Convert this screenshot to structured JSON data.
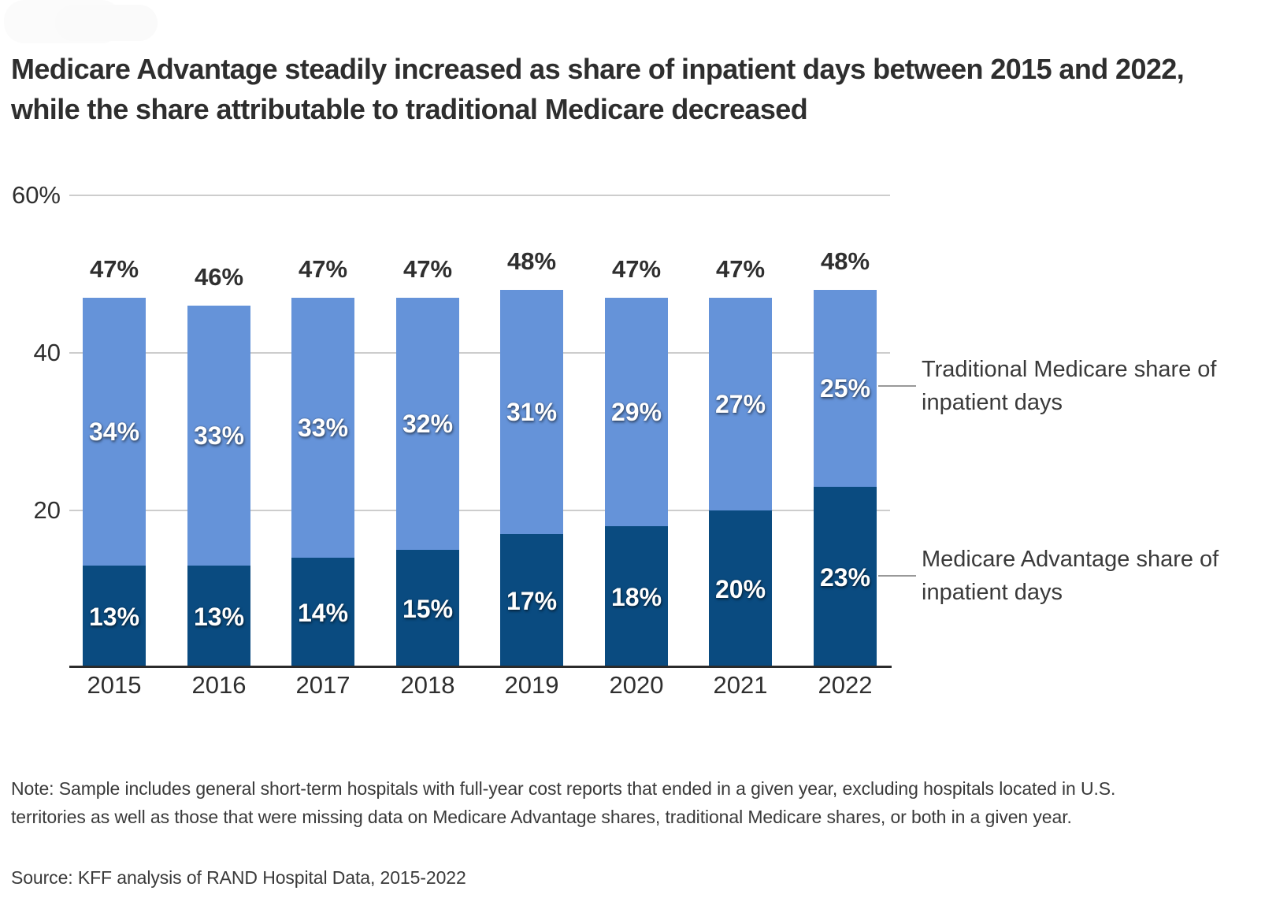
{
  "title": "Medicare Advantage steadily increased as share of inpatient days between 2015 and 2022, while the share attributable to traditional Medicare decreased",
  "chart_data": {
    "type": "bar",
    "stacked": true,
    "title": "Medicare Advantage steadily increased as share of inpatient days between 2015 and 2022, while the share attributable to traditional Medicare decreased",
    "categories": [
      "2015",
      "2016",
      "2017",
      "2018",
      "2019",
      "2020",
      "2021",
      "2022"
    ],
    "series": [
      {
        "name": "Medicare Advantage share of inpatient days",
        "color": "#0a4b80",
        "values": [
          13,
          13,
          14,
          15,
          17,
          18,
          20,
          23
        ]
      },
      {
        "name": "Traditional Medicare share of inpatient days",
        "color": "#6593d9",
        "values": [
          34,
          33,
          33,
          32,
          31,
          29,
          27,
          25
        ]
      }
    ],
    "totals": [
      47,
      46,
      47,
      47,
      48,
      47,
      47,
      48
    ],
    "value_suffix": "%",
    "xlabel": "",
    "ylabel": "",
    "ylim": [
      0,
      60
    ],
    "y_axis": {
      "ticks": [
        {
          "value": 60,
          "label": "60%"
        },
        {
          "value": 40,
          "label": "40"
        },
        {
          "value": 20,
          "label": "20"
        }
      ]
    },
    "grid": true,
    "legend_position": "right-annotations"
  },
  "annotations": {
    "traditional_label": "Traditional Medicare share of inpatient days",
    "advantage_label": "Medicare Advantage share of inpatient days"
  },
  "note": "Note: Sample includes general short-term hospitals with full-year cost reports that ended in a given year, excluding hospitals located in U.S. territories as well as those that were missing data on Medicare Advantage shares, traditional Medicare shares, or both in a given year.",
  "source": "Source: KFF analysis of RAND Hospital Data, 2015-2022",
  "colors": {
    "advantage_blue": "#0a4b80",
    "traditional_blue": "#6593d9",
    "text_dark": "#2f2f2f",
    "gridline": "#cdcdcd",
    "axis": "#2b2b2b",
    "connector": "#999999"
  }
}
